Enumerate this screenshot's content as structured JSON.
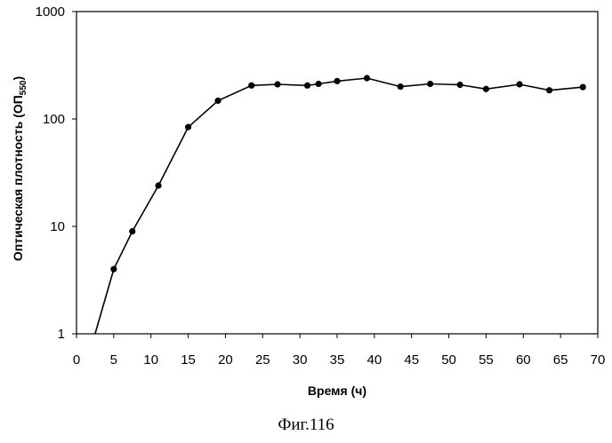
{
  "chart_data": {
    "type": "line",
    "xlabel": "Время (ч)",
    "ylabel_main": "Оптическая плотность (ОП",
    "ylabel_sub": "550",
    "ylabel_close": ")",
    "xlim": [
      0,
      70
    ],
    "ylim": [
      1,
      1000
    ],
    "yscale": "log",
    "xticks": [
      "0",
      "5",
      "10",
      "15",
      "20",
      "25",
      "30",
      "35",
      "40",
      "45",
      "50",
      "55",
      "60",
      "65",
      "70"
    ],
    "yticks": [
      "1",
      "10",
      "100",
      "1000"
    ],
    "grid": false,
    "series": [
      {
        "x": [
          2.5,
          5,
          7.5,
          11,
          15,
          19,
          23.5,
          27,
          31,
          32.5,
          35,
          39,
          43.5,
          47.5,
          51.5,
          55,
          59.5,
          63.5,
          68
        ],
        "y": [
          1,
          4,
          9,
          24,
          84,
          148,
          205,
          210,
          205,
          212,
          225,
          240,
          200,
          212,
          208,
          190,
          210,
          185,
          198
        ]
      }
    ]
  },
  "caption": "Фиг.116"
}
